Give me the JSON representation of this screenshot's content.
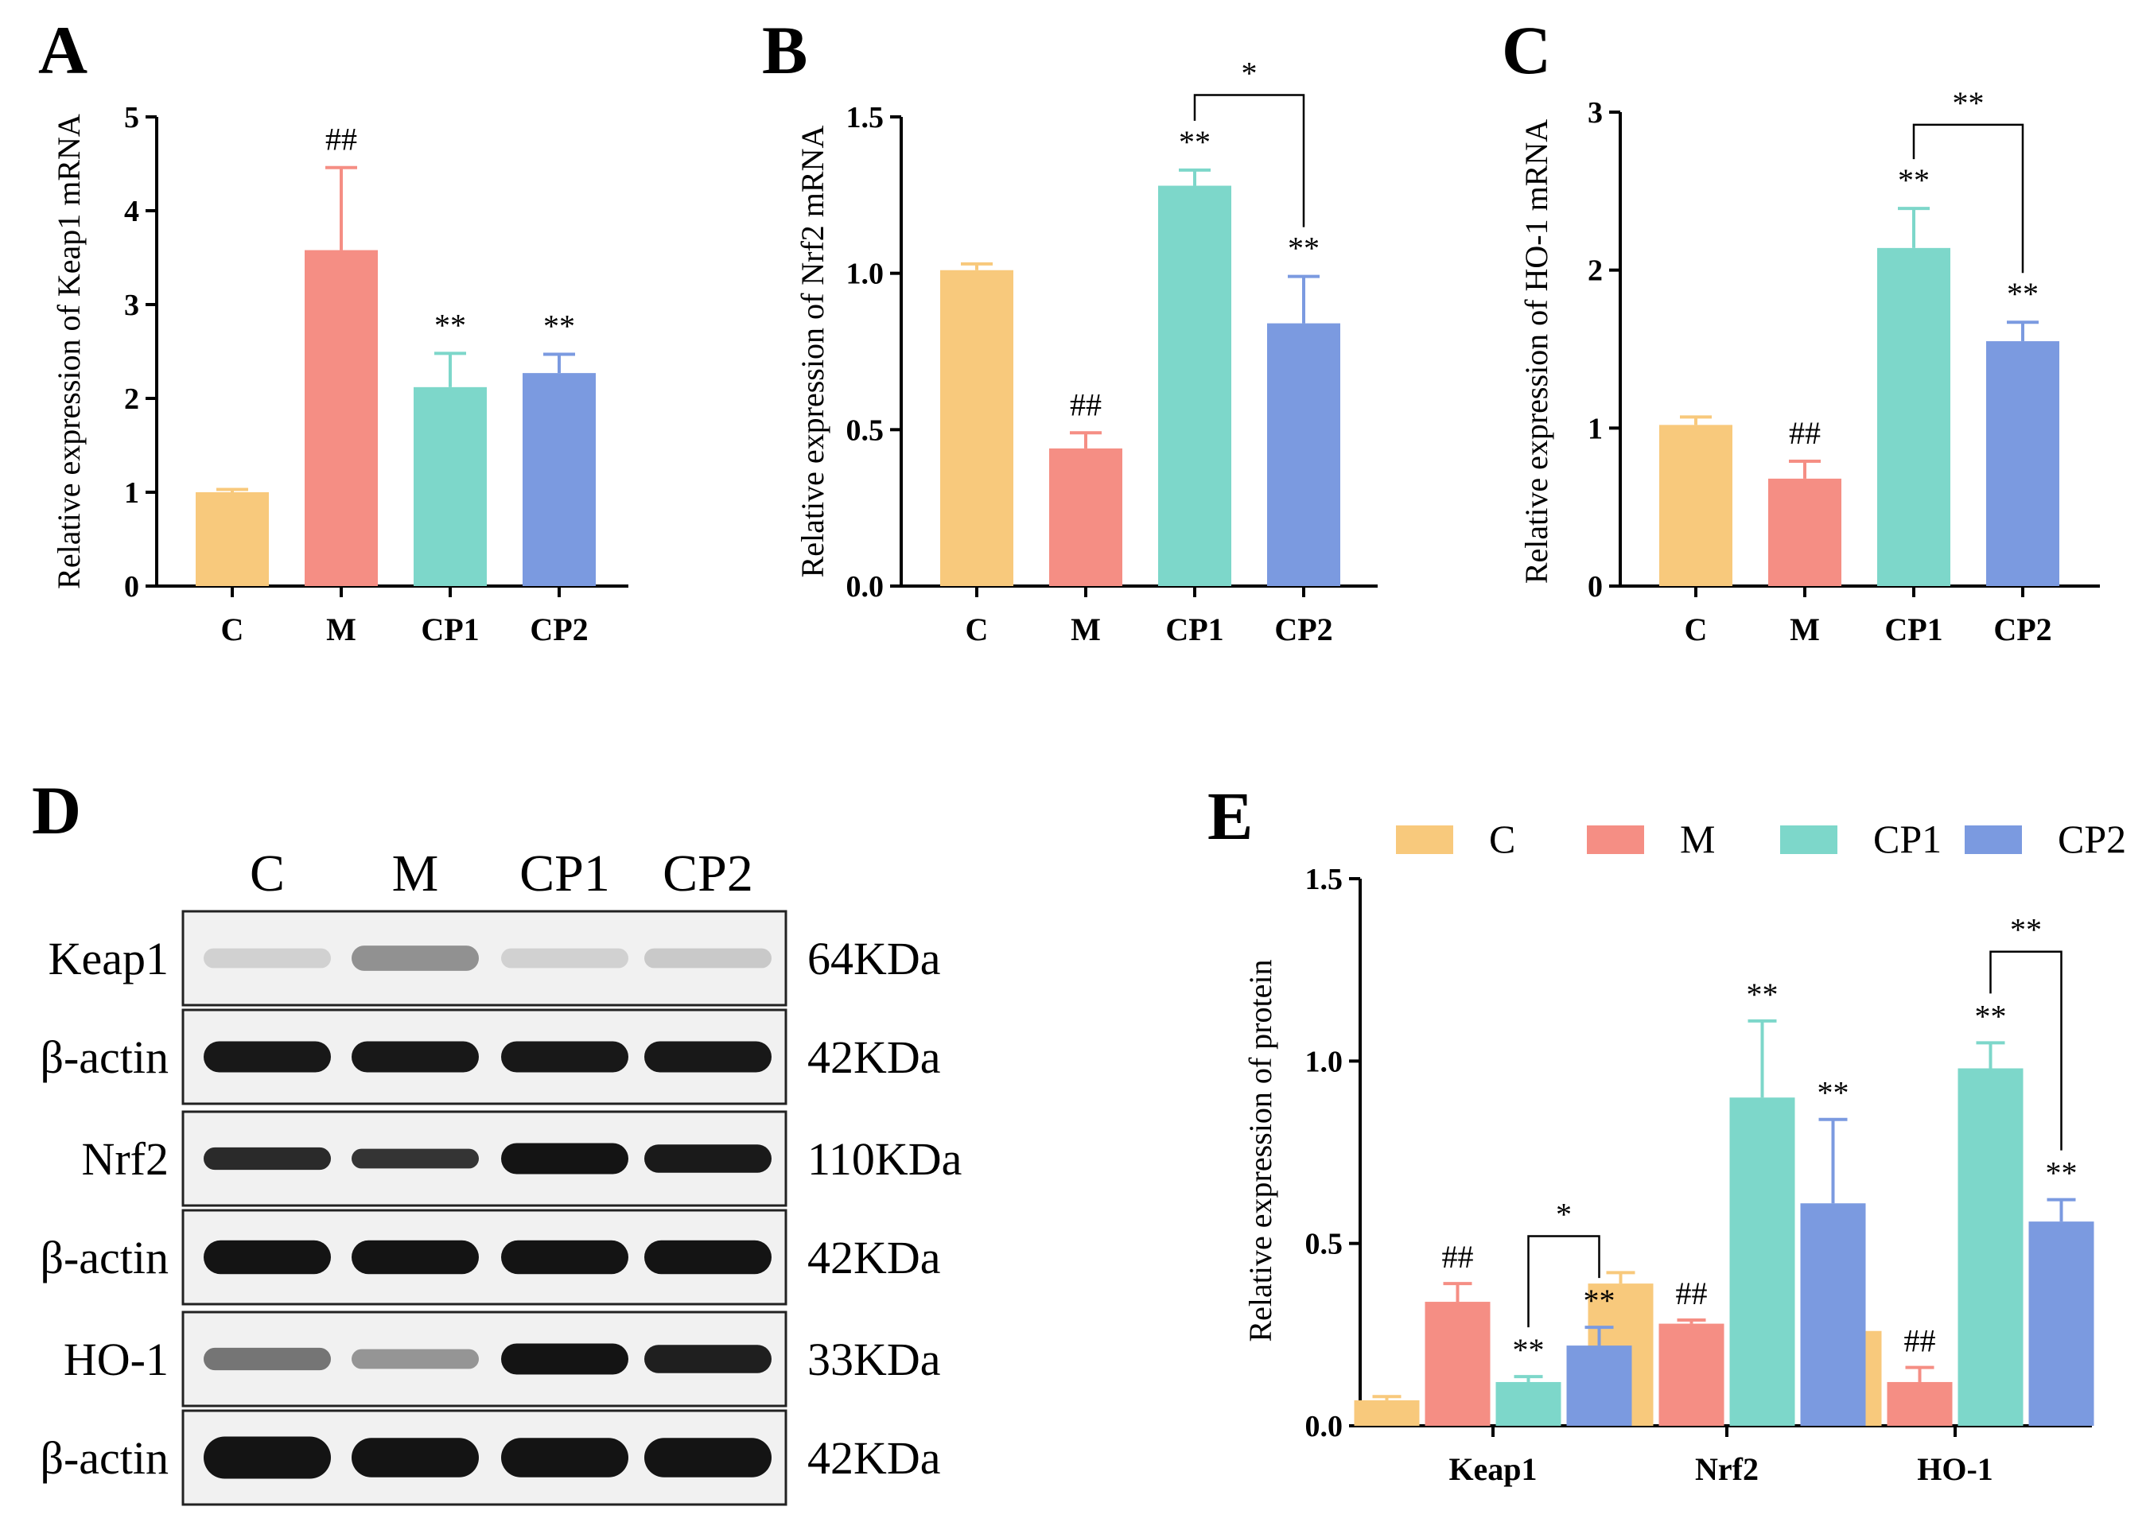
{
  "colors": {
    "C": "#f8c97c",
    "M": "#f58e84",
    "CP1": "#7dd7ca",
    "CP2": "#7b9ae0"
  },
  "chart_data": [
    {
      "panel": "A",
      "type": "bar",
      "ylabel": "Relative expression of Keap1 mRNA",
      "categories": [
        "C",
        "M",
        "CP1",
        "CP2"
      ],
      "values": [
        1.0,
        3.58,
        2.12,
        2.27
      ],
      "errors": [
        0.03,
        0.88,
        0.36,
        0.2
      ],
      "annotations": [
        "",
        "##",
        "**",
        "**"
      ],
      "ylim": [
        0,
        5
      ],
      "yticks": [
        0,
        1,
        2,
        3,
        4,
        5
      ],
      "ytick_labels": [
        "0",
        "1",
        "2",
        "3",
        "4",
        "5"
      ],
      "bracket": null
    },
    {
      "panel": "B",
      "type": "bar",
      "ylabel": "Relative expression of Nrf2 mRNA",
      "categories": [
        "C",
        "M",
        "CP1",
        "CP2"
      ],
      "values": [
        1.01,
        0.44,
        1.28,
        0.84
      ],
      "errors": [
        0.02,
        0.05,
        0.05,
        0.15
      ],
      "annotations": [
        "",
        "##",
        "**",
        "**"
      ],
      "ylim": [
        0,
        1.5
      ],
      "yticks": [
        0,
        0.5,
        1.0,
        1.5
      ],
      "ytick_labels": [
        "0.0",
        "0.5",
        "1.0",
        "1.5"
      ],
      "bracket": {
        "from": 2,
        "to": 3,
        "label": "*",
        "y": 1.57
      }
    },
    {
      "panel": "C",
      "type": "bar",
      "ylabel": "Relative expression of HO-1 mRNA",
      "categories": [
        "C",
        "M",
        "CP1",
        "CP2"
      ],
      "values": [
        1.02,
        0.68,
        2.14,
        1.55
      ],
      "errors": [
        0.05,
        0.11,
        0.25,
        0.12
      ],
      "annotations": [
        "",
        "##",
        "**",
        "**"
      ],
      "ylim": [
        0,
        3
      ],
      "yticks": [
        0,
        1,
        2,
        3
      ],
      "ytick_labels": [
        "0",
        "1",
        "2",
        "3"
      ],
      "bracket": {
        "from": 2,
        "to": 3,
        "label": "**",
        "y": 2.92
      }
    },
    {
      "panel": "E",
      "type": "bar",
      "ylabel": "Relative expression of protein",
      "categories": [
        "Keap1",
        "Nrf2",
        "HO-1"
      ],
      "legend": [
        "C",
        "M",
        "CP1",
        "CP2"
      ],
      "series": [
        {
          "name": "C",
          "values": [
            0.07,
            0.39,
            0.26
          ],
          "errors": [
            0.01,
            0.03,
            0.03
          ],
          "annotations": [
            "",
            "",
            ""
          ]
        },
        {
          "name": "M",
          "values": [
            0.34,
            0.28,
            0.12
          ],
          "errors": [
            0.05,
            0.01,
            0.04
          ],
          "annotations": [
            "##",
            "##",
            "##"
          ]
        },
        {
          "name": "CP1",
          "values": [
            0.12,
            0.9,
            0.98
          ],
          "errors": [
            0.015,
            0.21,
            0.07
          ],
          "annotations": [
            "**",
            "**",
            "**"
          ]
        },
        {
          "name": "CP2",
          "values": [
            0.22,
            0.61,
            0.56
          ],
          "errors": [
            0.05,
            0.23,
            0.06
          ],
          "annotations": [
            "**",
            "**",
            "**"
          ]
        }
      ],
      "ylim": [
        0,
        1.5
      ],
      "yticks": [
        0,
        0.5,
        1.0,
        1.5
      ],
      "ytick_labels": [
        "0.0",
        "0.5",
        "1.0",
        "1.5"
      ],
      "brackets": [
        {
          "group": 0,
          "from": 2,
          "to": 3,
          "label": "*",
          "y": 0.52
        },
        {
          "group": 2,
          "from": 2,
          "to": 3,
          "label": "**",
          "y": 1.3
        }
      ]
    }
  ],
  "panels": {
    "A": "A",
    "B": "B",
    "C": "C",
    "D": "D",
    "E": "E"
  },
  "blot": {
    "lanes": [
      "C",
      "M",
      "CP1",
      "CP2"
    ],
    "rows": [
      {
        "label": "Keap1",
        "kda": "64KDa",
        "intensity": [
          0.12,
          0.42,
          0.12,
          0.16
        ],
        "height": [
          0.35,
          0.45,
          0.35,
          0.35
        ]
      },
      {
        "label": "β-actin",
        "kda": "42KDa",
        "intensity": [
          0.98,
          0.98,
          0.98,
          0.98
        ],
        "height": [
          0.55,
          0.55,
          0.55,
          0.55
        ]
      },
      {
        "label": "Nrf2",
        "kda": "110KDa",
        "intensity": [
          0.9,
          0.85,
          1.0,
          0.97
        ],
        "height": [
          0.4,
          0.35,
          0.55,
          0.5
        ]
      },
      {
        "label": "β-actin",
        "kda": "42KDa",
        "intensity": [
          1.0,
          1.0,
          1.0,
          1.0
        ],
        "height": [
          0.6,
          0.6,
          0.6,
          0.6
        ]
      },
      {
        "label": "HO-1",
        "kda": "33KDa",
        "intensity": [
          0.55,
          0.4,
          1.0,
          0.95
        ],
        "height": [
          0.4,
          0.35,
          0.55,
          0.5
        ]
      },
      {
        "label": "β-actin",
        "kda": "42KDa",
        "intensity": [
          1.0,
          1.0,
          1.0,
          1.0
        ],
        "height": [
          0.75,
          0.7,
          0.7,
          0.7
        ]
      }
    ]
  }
}
